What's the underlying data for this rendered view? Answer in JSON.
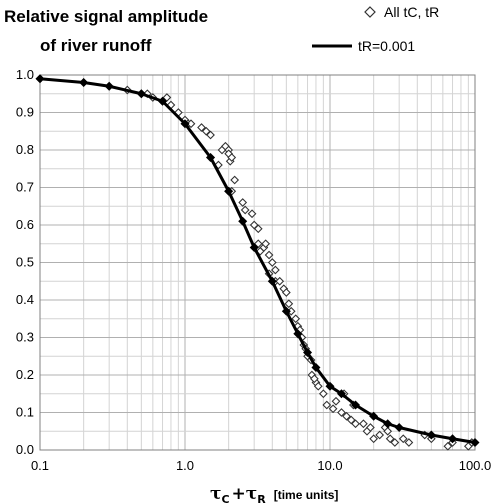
{
  "chart_data": {
    "type": "scatter",
    "title_line1": "Relative signal amplitude",
    "title_line2": "of river runoff",
    "xlabel": {
      "tau": "τ",
      "sub_c": "C",
      "plus": "+",
      "sub_r": "R",
      "units": "[time units]"
    },
    "x_scale": "log",
    "xlim": [
      0.1,
      100
    ],
    "ylim": [
      0,
      1
    ],
    "x_tick_labels": [
      {
        "value": 0.1,
        "label": "0.1"
      },
      {
        "value": 1,
        "label": "1.0"
      },
      {
        "value": 10,
        "label": "10.0"
      },
      {
        "value": 100,
        "label": "100.0"
      }
    ],
    "y_tick_labels": [
      {
        "value": 0.0,
        "label": "0.0"
      },
      {
        "value": 0.1,
        "label": "0.1"
      },
      {
        "value": 0.2,
        "label": "0.2"
      },
      {
        "value": 0.3,
        "label": "0.3"
      },
      {
        "value": 0.4,
        "label": "0.4"
      },
      {
        "value": 0.5,
        "label": "0.5"
      },
      {
        "value": 0.6,
        "label": "0.6"
      },
      {
        "value": 0.7,
        "label": "0.7"
      },
      {
        "value": 0.8,
        "label": "0.8"
      },
      {
        "value": 0.9,
        "label": "0.9"
      },
      {
        "value": 1.0,
        "label": "1.0"
      }
    ],
    "grid": true,
    "legend": {
      "placement": "top-right"
    },
    "series": [
      {
        "name": "All tC, tR",
        "style": "open-diamond",
        "color": "#333333",
        "points": [
          [
            0.1,
            0.99
          ],
          [
            0.2,
            0.98
          ],
          [
            0.3,
            0.97
          ],
          [
            0.4,
            0.96
          ],
          [
            0.5,
            0.95
          ],
          [
            0.55,
            0.95
          ],
          [
            0.6,
            0.94
          ],
          [
            0.7,
            0.93
          ],
          [
            0.75,
            0.94
          ],
          [
            0.8,
            0.92
          ],
          [
            0.9,
            0.9
          ],
          [
            1.0,
            0.88
          ],
          [
            1.05,
            0.87
          ],
          [
            1.1,
            0.87
          ],
          [
            1.3,
            0.86
          ],
          [
            1.4,
            0.85
          ],
          [
            1.5,
            0.84
          ],
          [
            1.5,
            0.78
          ],
          [
            1.7,
            0.76
          ],
          [
            1.8,
            0.8
          ],
          [
            1.9,
            0.81
          ],
          [
            2.0,
            0.8
          ],
          [
            2.0,
            0.79
          ],
          [
            2.05,
            0.77
          ],
          [
            2.1,
            0.78
          ],
          [
            2.2,
            0.72
          ],
          [
            2.0,
            0.69
          ],
          [
            2.1,
            0.69
          ],
          [
            2.5,
            0.66
          ],
          [
            2.6,
            0.64
          ],
          [
            2.9,
            0.63
          ],
          [
            3.0,
            0.6
          ],
          [
            3.2,
            0.59
          ],
          [
            3.2,
            0.55
          ],
          [
            3.3,
            0.53
          ],
          [
            3.5,
            0.54
          ],
          [
            3.6,
            0.55
          ],
          [
            3.8,
            0.52
          ],
          [
            4.0,
            0.5
          ],
          [
            3.8,
            0.47
          ],
          [
            4.2,
            0.45
          ],
          [
            4.2,
            0.48
          ],
          [
            4.5,
            0.45
          ],
          [
            4.8,
            0.43
          ],
          [
            5.0,
            0.42
          ],
          [
            5.2,
            0.39
          ],
          [
            5.4,
            0.37
          ],
          [
            5.8,
            0.35
          ],
          [
            6.0,
            0.33
          ],
          [
            6.2,
            0.32
          ],
          [
            6.4,
            0.3
          ],
          [
            6.6,
            0.28
          ],
          [
            6.8,
            0.27
          ],
          [
            7.0,
            0.25
          ],
          [
            7.4,
            0.24
          ],
          [
            7.5,
            0.2
          ],
          [
            8.0,
            0.18
          ],
          [
            8.3,
            0.17
          ],
          [
            7.8,
            0.19
          ],
          [
            9.0,
            0.15
          ],
          [
            9.5,
            0.12
          ],
          [
            10.5,
            0.11
          ],
          [
            12.0,
            0.1
          ],
          [
            11.0,
            0.13
          ],
          [
            13.0,
            0.09
          ],
          [
            14.0,
            0.08
          ],
          [
            15.0,
            0.07
          ],
          [
            17.0,
            0.07
          ],
          [
            12.5,
            0.15
          ],
          [
            14.5,
            0.12
          ],
          [
            18.0,
            0.05
          ],
          [
            19.0,
            0.06
          ],
          [
            20.0,
            0.03
          ],
          [
            22.0,
            0.04
          ],
          [
            24.0,
            0.06
          ],
          [
            25.0,
            0.05
          ],
          [
            26.0,
            0.03
          ],
          [
            28.0,
            0.02
          ],
          [
            32.0,
            0.03
          ],
          [
            35.0,
            0.02
          ],
          [
            45.0,
            0.04
          ],
          [
            50.0,
            0.03
          ],
          [
            65.0,
            0.01
          ],
          [
            70.0,
            0.02
          ],
          [
            90.0,
            0.01
          ],
          [
            95.0,
            0.02
          ]
        ]
      },
      {
        "name": "tR=0.001",
        "style": "line-with-filled-diamonds",
        "color": "#000000",
        "points": [
          [
            0.1,
            0.99
          ],
          [
            0.2,
            0.98
          ],
          [
            0.3,
            0.97
          ],
          [
            0.5,
            0.95
          ],
          [
            0.7,
            0.93
          ],
          [
            1.0,
            0.87
          ],
          [
            1.5,
            0.78
          ],
          [
            2.0,
            0.69
          ],
          [
            2.5,
            0.61
          ],
          [
            3.0,
            0.54
          ],
          [
            4.0,
            0.45
          ],
          [
            5.0,
            0.37
          ],
          [
            6.0,
            0.31
          ],
          [
            7.0,
            0.26
          ],
          [
            8.0,
            0.22
          ],
          [
            10.0,
            0.17
          ],
          [
            12.0,
            0.15
          ],
          [
            15.0,
            0.12
          ],
          [
            20.0,
            0.09
          ],
          [
            25.0,
            0.07
          ],
          [
            30.0,
            0.06
          ],
          [
            50.0,
            0.04
          ],
          [
            70.0,
            0.03
          ],
          [
            100.0,
            0.02
          ]
        ]
      }
    ]
  }
}
